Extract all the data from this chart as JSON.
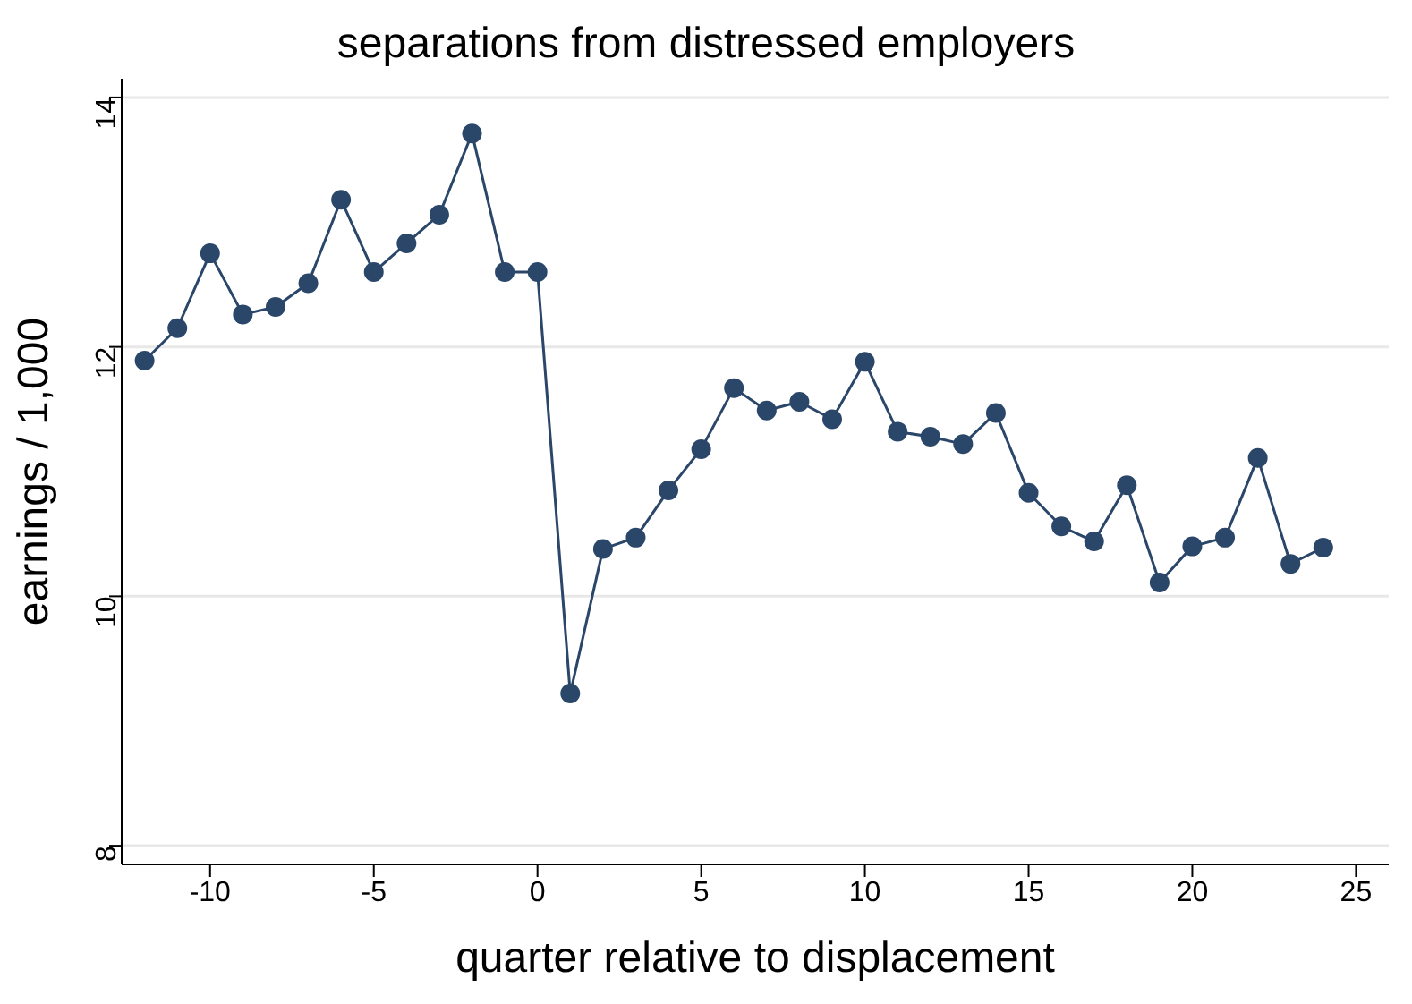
{
  "chart_data": {
    "type": "line",
    "title": "separations from distressed employers",
    "xlabel": "quarter relative to displacement",
    "ylabel": "earnings / 1,000",
    "x": [
      -12,
      -11,
      -10,
      -9,
      -8,
      -7,
      -6,
      -5,
      -4,
      -3,
      -2,
      -1,
      0,
      1,
      2,
      3,
      4,
      5,
      6,
      7,
      8,
      9,
      10,
      11,
      12,
      13,
      14,
      15,
      16,
      17,
      18,
      19,
      20,
      21,
      22,
      23,
      24
    ],
    "series": [
      {
        "color": "#2a4669",
        "values": [
          11.89,
          12.15,
          12.75,
          12.26,
          12.32,
          12.51,
          13.18,
          12.6,
          12.83,
          13.06,
          13.71,
          12.6,
          12.6,
          9.22,
          10.38,
          10.47,
          10.85,
          11.18,
          11.67,
          11.49,
          11.56,
          11.42,
          11.88,
          11.32,
          11.28,
          11.22,
          11.47,
          10.83,
          10.56,
          10.44,
          10.89,
          10.11,
          10.4,
          10.47,
          11.11,
          10.26,
          10.39
        ]
      }
    ],
    "xlim": [
      -12.7,
      26
    ],
    "xticks": [
      -10,
      -5,
      0,
      5,
      10,
      15,
      20,
      25
    ],
    "ylim": [
      7.85,
      14.15
    ],
    "yticks": [
      8,
      10,
      12,
      14
    ],
    "grid": "y",
    "marker": "circle",
    "line_style": "solid"
  }
}
